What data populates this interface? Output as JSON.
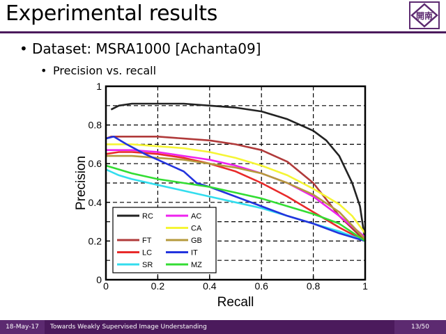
{
  "slide": {
    "title": "Experimental results",
    "bullet1": "Dataset: MSRA1000 [Achanta09]",
    "bullet2": "Precision vs. recall",
    "logo_text": "開南"
  },
  "footer": {
    "date": "18-May-17",
    "title": "Towards Weakly Supervised Image Understanding",
    "page": "13/50"
  },
  "colors": {
    "accent": "#4b1a5c"
  },
  "chart_data": {
    "type": "line",
    "title": "",
    "xlabel": "Recall",
    "ylabel": "Precision",
    "xlim": [
      0,
      1
    ],
    "ylim": [
      0,
      1
    ],
    "grid": true,
    "x_ticks": [
      "0",
      "0.2",
      "0.4",
      "0.6",
      "0.8",
      "1"
    ],
    "y_ticks": [
      "0",
      "0.2",
      "0.4",
      "0.6",
      "0.8",
      "1"
    ],
    "series": [
      {
        "name": "RC",
        "color": "#222222",
        "points": [
          [
            0.02,
            0.88
          ],
          [
            0.05,
            0.9
          ],
          [
            0.1,
            0.91
          ],
          [
            0.2,
            0.91
          ],
          [
            0.3,
            0.91
          ],
          [
            0.4,
            0.9
          ],
          [
            0.5,
            0.89
          ],
          [
            0.6,
            0.87
          ],
          [
            0.7,
            0.83
          ],
          [
            0.8,
            0.77
          ],
          [
            0.85,
            0.72
          ],
          [
            0.9,
            0.64
          ],
          [
            0.95,
            0.5
          ],
          [
            0.98,
            0.38
          ],
          [
            1.0,
            0.2
          ]
        ]
      },
      {
        "name": "FT",
        "color": "#b03a3a",
        "points": [
          [
            0.0,
            0.73
          ],
          [
            0.02,
            0.74
          ],
          [
            0.1,
            0.74
          ],
          [
            0.2,
            0.74
          ],
          [
            0.3,
            0.73
          ],
          [
            0.4,
            0.72
          ],
          [
            0.5,
            0.7
          ],
          [
            0.6,
            0.67
          ],
          [
            0.7,
            0.61
          ],
          [
            0.8,
            0.5
          ],
          [
            0.9,
            0.33
          ],
          [
            1.0,
            0.2
          ]
        ]
      },
      {
        "name": "LC",
        "color": "#e82a2a",
        "points": [
          [
            0.0,
            0.65
          ],
          [
            0.05,
            0.66
          ],
          [
            0.1,
            0.66
          ],
          [
            0.2,
            0.65
          ],
          [
            0.3,
            0.63
          ],
          [
            0.4,
            0.6
          ],
          [
            0.5,
            0.56
          ],
          [
            0.6,
            0.5
          ],
          [
            0.7,
            0.43
          ],
          [
            0.8,
            0.35
          ],
          [
            0.9,
            0.27
          ],
          [
            1.0,
            0.2
          ]
        ]
      },
      {
        "name": "SR",
        "color": "#33ddee",
        "points": [
          [
            0.0,
            0.57
          ],
          [
            0.05,
            0.54
          ],
          [
            0.1,
            0.52
          ],
          [
            0.2,
            0.49
          ],
          [
            0.3,
            0.46
          ],
          [
            0.4,
            0.43
          ],
          [
            0.5,
            0.4
          ],
          [
            0.6,
            0.37
          ],
          [
            0.7,
            0.33
          ],
          [
            0.8,
            0.29
          ],
          [
            0.9,
            0.25
          ],
          [
            1.0,
            0.2
          ]
        ]
      },
      {
        "name": "AC",
        "color": "#ee22ee",
        "points": [
          [
            0.0,
            0.67
          ],
          [
            0.1,
            0.67
          ],
          [
            0.2,
            0.66
          ],
          [
            0.3,
            0.64
          ],
          [
            0.4,
            0.62
          ],
          [
            0.5,
            0.59
          ],
          [
            0.6,
            0.55
          ],
          [
            0.7,
            0.5
          ],
          [
            0.8,
            0.43
          ],
          [
            0.9,
            0.33
          ],
          [
            1.0,
            0.22
          ]
        ]
      },
      {
        "name": "CA",
        "color": "#f5f535",
        "points": [
          [
            0.0,
            0.7
          ],
          [
            0.1,
            0.7
          ],
          [
            0.2,
            0.69
          ],
          [
            0.3,
            0.68
          ],
          [
            0.4,
            0.66
          ],
          [
            0.5,
            0.63
          ],
          [
            0.6,
            0.59
          ],
          [
            0.7,
            0.54
          ],
          [
            0.8,
            0.47
          ],
          [
            0.9,
            0.39
          ],
          [
            0.95,
            0.33
          ],
          [
            1.0,
            0.24
          ]
        ]
      },
      {
        "name": "GB",
        "color": "#b59a3c",
        "points": [
          [
            0.0,
            0.64
          ],
          [
            0.1,
            0.64
          ],
          [
            0.2,
            0.63
          ],
          [
            0.3,
            0.62
          ],
          [
            0.4,
            0.6
          ],
          [
            0.5,
            0.58
          ],
          [
            0.6,
            0.55
          ],
          [
            0.7,
            0.5
          ],
          [
            0.8,
            0.44
          ],
          [
            0.9,
            0.35
          ],
          [
            1.0,
            0.21
          ]
        ]
      },
      {
        "name": "IT",
        "color": "#2233dd",
        "points": [
          [
            0.0,
            0.73
          ],
          [
            0.03,
            0.74
          ],
          [
            0.08,
            0.7
          ],
          [
            0.15,
            0.65
          ],
          [
            0.2,
            0.62
          ],
          [
            0.25,
            0.59
          ],
          [
            0.3,
            0.56
          ],
          [
            0.35,
            0.5
          ],
          [
            0.4,
            0.48
          ],
          [
            0.5,
            0.43
          ],
          [
            0.6,
            0.38
          ],
          [
            0.7,
            0.33
          ],
          [
            0.8,
            0.29
          ],
          [
            0.9,
            0.24
          ],
          [
            1.0,
            0.2
          ]
        ]
      },
      {
        "name": "MZ",
        "color": "#33dd33",
        "points": [
          [
            0.0,
            0.59
          ],
          [
            0.05,
            0.57
          ],
          [
            0.1,
            0.55
          ],
          [
            0.2,
            0.52
          ],
          [
            0.3,
            0.5
          ],
          [
            0.4,
            0.48
          ],
          [
            0.5,
            0.45
          ],
          [
            0.6,
            0.42
          ],
          [
            0.7,
            0.38
          ],
          [
            0.8,
            0.34
          ],
          [
            0.9,
            0.29
          ],
          [
            1.0,
            0.2
          ]
        ]
      }
    ],
    "legend_left": [
      "RC",
      "",
      "FT",
      "LC",
      "SR"
    ],
    "legend_right": [
      "AC",
      "CA",
      "GB",
      "IT",
      "MZ"
    ],
    "legend_position": "bottom-left"
  }
}
